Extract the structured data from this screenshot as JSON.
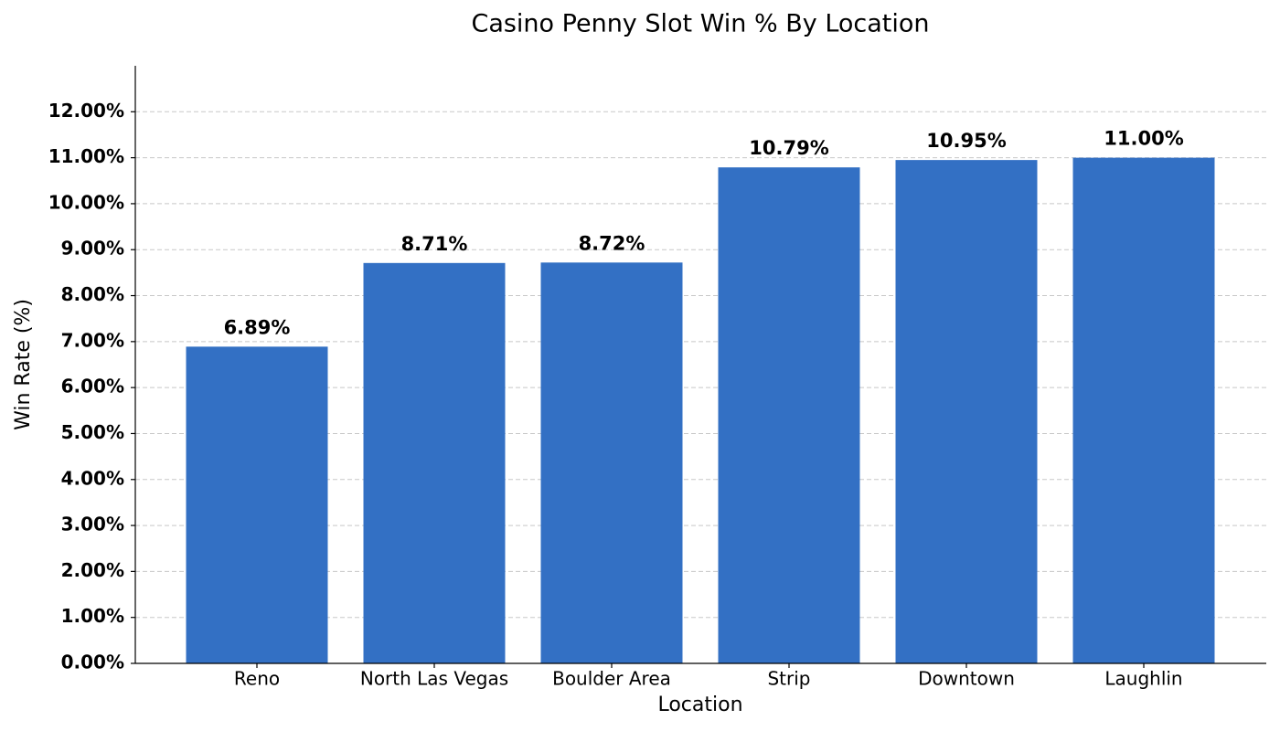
{
  "chart_data": {
    "type": "bar",
    "title": "Casino Penny Slot Win % By Location",
    "x_label": "Location",
    "y_label": "Win Rate (%)",
    "categories": [
      "Reno",
      "North Las Vegas",
      "Boulder Area",
      "Strip",
      "Downtown",
      "Laughlin"
    ],
    "values": [
      6.89,
      8.71,
      8.72,
      10.79,
      10.95,
      11.0
    ],
    "value_labels": [
      "6.89%",
      "8.71%",
      "8.72%",
      "10.79%",
      "10.95%",
      "11.00%"
    ],
    "color": "#3370c4",
    "ylim": [
      0,
      13
    ],
    "yticks": [
      {
        "value": 0,
        "label": "0.00%"
      },
      {
        "value": 1,
        "label": "1.00%"
      },
      {
        "value": 2,
        "label": "2.00%"
      },
      {
        "value": 3,
        "label": "3.00%"
      },
      {
        "value": 4,
        "label": "4.00%"
      },
      {
        "value": 5,
        "label": "5.00%"
      },
      {
        "value": 6,
        "label": "6.00%"
      },
      {
        "value": 7,
        "label": "7.00%"
      },
      {
        "value": 8,
        "label": "8.00%"
      },
      {
        "value": 9,
        "label": "9.00%"
      },
      {
        "value": 10,
        "label": "10.00%"
      },
      {
        "value": 11,
        "label": "11.00%"
      },
      {
        "value": 12,
        "label": "12.00%"
      }
    ],
    "grid": true
  }
}
